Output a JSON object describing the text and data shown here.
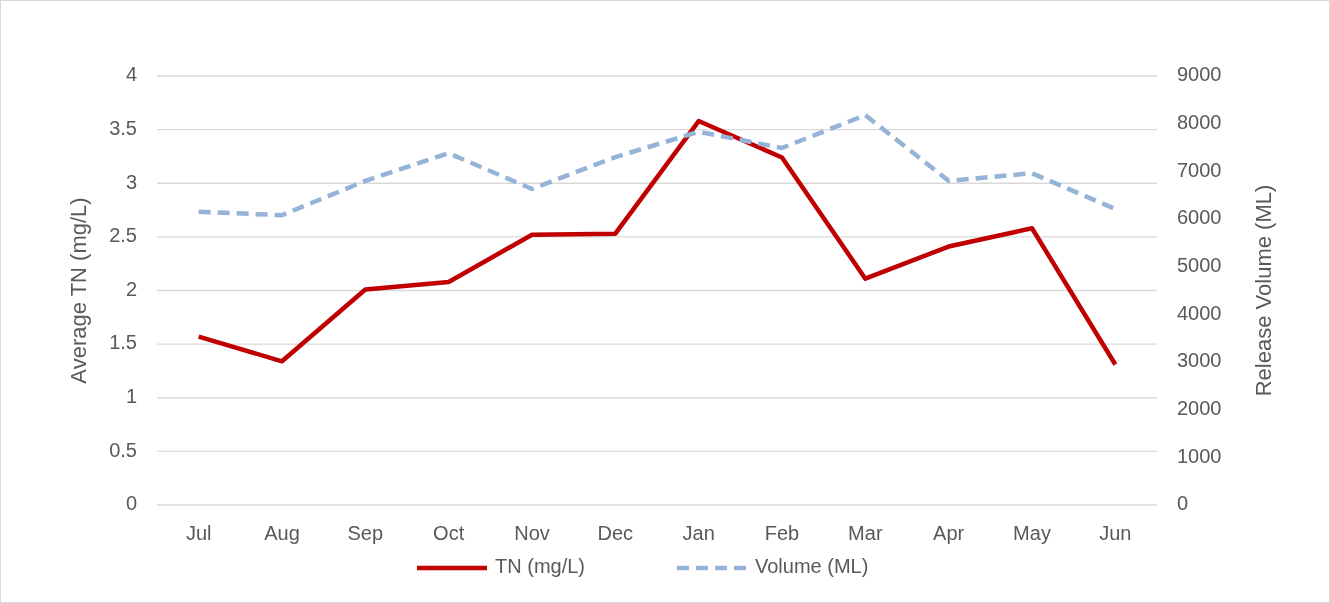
{
  "chart_data": {
    "type": "line",
    "categories": [
      "Jul",
      "Aug",
      "Sep",
      "Oct",
      "Nov",
      "Dec",
      "Jan",
      "Feb",
      "Mar",
      "Apr",
      "May",
      "Jun"
    ],
    "ylabel": "Average TN (mg/L)",
    "y2label": "Release Volume (ML)",
    "ylim": [
      0,
      4
    ],
    "yticks": [
      0,
      0.5,
      1,
      1.5,
      2,
      2.5,
      3,
      3.5,
      4
    ],
    "y2lim": [
      0,
      9000
    ],
    "y2ticks": [
      0,
      1000,
      2000,
      3000,
      4000,
      5000,
      6000,
      7000,
      8000,
      9000
    ],
    "grid": "y",
    "legend": "bottom",
    "series": [
      {
        "name": "TN (mg/L)",
        "color": "#c00000",
        "line_style": "solid",
        "values": [
          1.57,
          1.34,
          2.01,
          2.08,
          2.52,
          2.53,
          3.58,
          3.24,
          2.11,
          2.41,
          2.58,
          1.31
        ]
      },
      {
        "name": "Volume (ML)",
        "color": "#95b3d7",
        "line_style": "dashed",
        "axis": "y2",
        "values": [
          6150,
          6080,
          6800,
          7380,
          6630,
          7300,
          7830,
          7490,
          8180,
          6800,
          6960,
          6210
        ]
      }
    ]
  }
}
